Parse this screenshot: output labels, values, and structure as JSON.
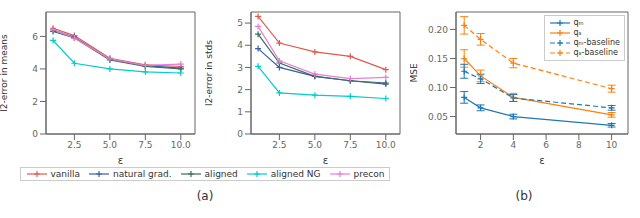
{
  "chart_data": [
    {
      "type": "line",
      "x": [
        1.0,
        2.5,
        5.0,
        7.5,
        10.0
      ],
      "xlabel": "ε",
      "ylabel": "l2-error in means",
      "xlim": [
        0.5,
        11
      ],
      "ylim": [
        0,
        7.5
      ],
      "xticks": [
        2.5,
        {
          "value": 5,
          "label": "5.0"
        },
        7.5,
        {
          "value": 10,
          "label": "10.0"
        }
      ],
      "yticks": [
        0,
        2,
        4,
        6
      ],
      "marker": "plus",
      "legend": "bottom",
      "annotations": [
        "(a)"
      ],
      "series": [
        {
          "name": "vanilla",
          "color": "#e05a50",
          "line_style": "solid",
          "values": [
            6.5,
            6.05,
            4.65,
            4.25,
            4.15
          ]
        },
        {
          "name": "natural grad.",
          "color": "#3c5ea8",
          "line_style": "solid",
          "values": [
            6.4,
            5.95,
            4.6,
            4.2,
            4.05
          ]
        },
        {
          "name": "aligned",
          "color": "#3a6e5f",
          "line_style": "solid",
          "values": [
            6.3,
            5.9,
            4.55,
            4.15,
            4.0
          ]
        },
        {
          "name": "aligned NG",
          "color": "#00cccc",
          "line_style": "solid",
          "values": [
            5.75,
            4.35,
            4.0,
            3.82,
            3.75
          ]
        },
        {
          "name": "precon",
          "color": "#e87fd4",
          "line_style": "solid",
          "values": [
            6.42,
            5.9,
            4.62,
            4.22,
            4.3
          ]
        }
      ]
    },
    {
      "type": "line",
      "x": [
        1.0,
        2.5,
        5.0,
        7.5,
        10.0
      ],
      "xlabel": "ε",
      "ylabel": "l2-error in stds",
      "xlim": [
        0.5,
        11
      ],
      "ylim": [
        0,
        5.5
      ],
      "xticks": [
        2.5,
        {
          "value": 5,
          "label": "5.0"
        },
        7.5,
        {
          "value": 10,
          "label": "10.0"
        }
      ],
      "yticks": [
        0,
        1,
        2,
        3,
        4,
        5
      ],
      "marker": "plus",
      "series": [
        {
          "name": "vanilla",
          "color": "#e05a50",
          "line_style": "solid",
          "values": [
            5.3,
            4.1,
            3.7,
            3.5,
            2.9
          ]
        },
        {
          "name": "natural grad.",
          "color": "#3c5ea8",
          "line_style": "solid",
          "values": [
            3.85,
            3.0,
            2.6,
            2.4,
            2.3
          ]
        },
        {
          "name": "aligned",
          "color": "#3a6e5f",
          "line_style": "solid",
          "values": [
            4.5,
            3.2,
            2.6,
            2.4,
            2.25
          ]
        },
        {
          "name": "aligned NG",
          "color": "#00cccc",
          "line_style": "solid",
          "values": [
            3.05,
            1.85,
            1.75,
            1.7,
            1.6
          ]
        },
        {
          "name": "precon",
          "color": "#e87fd4",
          "line_style": "solid",
          "values": [
            4.85,
            3.3,
            2.7,
            2.5,
            2.55
          ]
        }
      ]
    },
    {
      "type": "line",
      "x": [
        1.0,
        2.0,
        4.0,
        10.0
      ],
      "xlabel": "ε",
      "ylabel": "MSE",
      "xlim": [
        0.5,
        11
      ],
      "ylim": [
        0.02,
        0.23
      ],
      "xticks": [
        2,
        4,
        6,
        8,
        10
      ],
      "yticks": [
        0.05,
        {
          "value": 0.1,
          "label": "0.10"
        },
        0.15,
        {
          "value": 0.2,
          "label": "0.20"
        }
      ],
      "marker": "plus",
      "legend": "upper right",
      "annotations": [
        "(b)"
      ],
      "series": [
        {
          "name": "qₘ",
          "color": "#1f77b4",
          "line_style": "solid",
          "values": [
            0.083,
            0.065,
            0.05,
            0.035
          ],
          "errors": [
            0.01,
            0.005,
            0.004,
            0.003
          ]
        },
        {
          "name": "qₛ",
          "color": "#ff7f0e",
          "line_style": "solid",
          "values": [
            0.15,
            0.12,
            0.083,
            0.053
          ],
          "errors": [
            0.015,
            0.01,
            0.007,
            0.004
          ]
        },
        {
          "name": "qₘ-baseline",
          "color": "#1f77b4",
          "line_style": "dashed",
          "values": [
            0.128,
            0.115,
            0.082,
            0.065
          ],
          "errors": [
            0.012,
            0.008,
            0.006,
            0.004
          ]
        },
        {
          "name": "qₛ-baseline",
          "color": "#ff7f0e",
          "line_style": "dashed",
          "values": [
            0.207,
            0.183,
            0.142,
            0.098
          ],
          "errors": [
            0.015,
            0.01,
            0.008,
            0.006
          ]
        }
      ]
    }
  ]
}
